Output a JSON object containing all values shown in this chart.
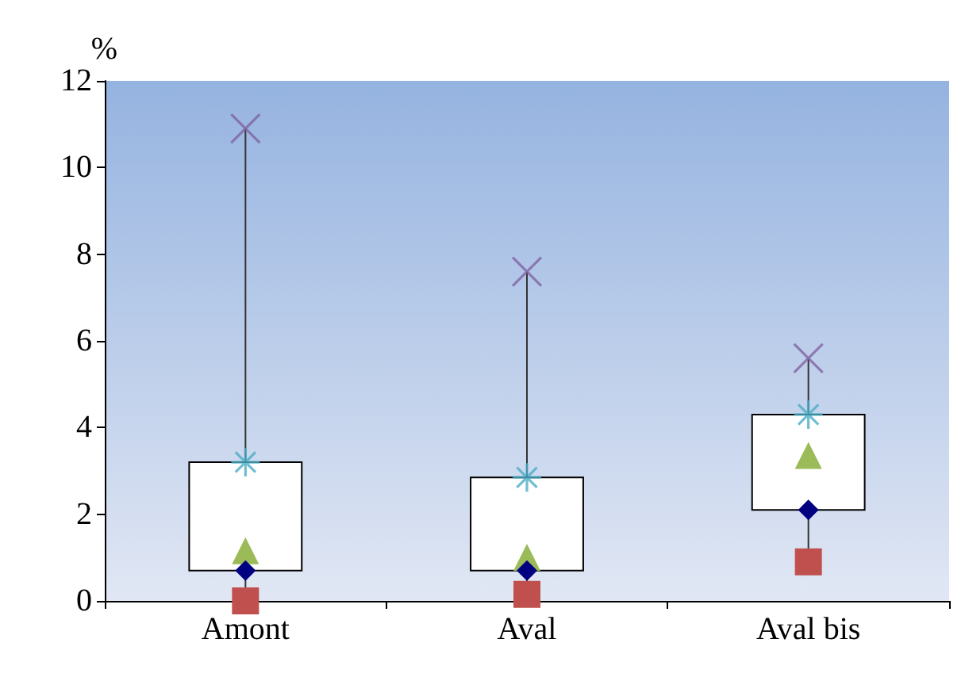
{
  "chart_data": {
    "type": "box",
    "ylabel": "%",
    "categories": [
      "Amont",
      "Aval",
      "Aval bis"
    ],
    "series": [
      {
        "color": "#ffffff",
        "boxes": [
          {
            "low": 0,
            "q1": 0.7,
            "median": 1.1,
            "q3": 3.2,
            "high": 10.9
          },
          {
            "low": 0.15,
            "q1": 0.7,
            "median": 0.95,
            "q3": 2.85,
            "high": 7.6
          },
          {
            "low": 0.9,
            "q1": 2.1,
            "median": 3.3,
            "q3": 4.3,
            "high": 5.6
          }
        ]
      },
      {
        "type": "scatter",
        "marker": "square",
        "color": "#c0504d",
        "values": [
          0,
          0.15,
          0.9
        ]
      },
      {
        "type": "scatter",
        "marker": "diamond",
        "color": "#000080",
        "values": [
          0.7,
          0.7,
          2.1
        ]
      },
      {
        "type": "scatter",
        "marker": "cross",
        "color": "#4bacc6",
        "values": [
          3.2,
          2.85,
          4.3
        ]
      },
      {
        "type": "scatter",
        "marker": "cross",
        "color": "#8064a2",
        "values": [
          10.9,
          7.6,
          5.6
        ]
      }
    ],
    "ylim": [
      0,
      12
    ],
    "yticks": [
      0,
      2,
      4,
      6,
      8,
      10,
      12
    ],
    "grid": false
  }
}
